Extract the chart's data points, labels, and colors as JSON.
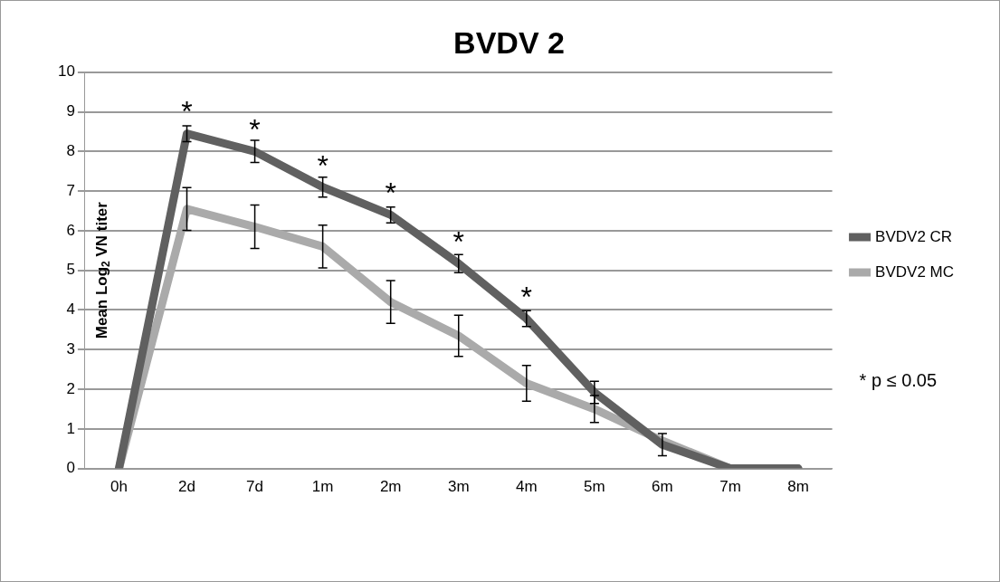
{
  "chart_data": {
    "type": "line",
    "title": "BVDV 2",
    "ylabel": "Mean Log$_{2}$ VN titer",
    "categories": [
      "0h",
      "2d",
      "7d",
      "1m",
      "2m",
      "3m",
      "4m",
      "5m",
      "6m",
      "7m",
      "8m"
    ],
    "series": [
      {
        "name": "BVDV2 CR",
        "color": "#606060",
        "values": [
          0,
          8.45,
          8.0,
          7.1,
          6.4,
          5.17,
          3.78,
          1.92,
          0.6,
          0,
          0
        ],
        "errors": [
          null,
          0.2,
          0.28,
          0.25,
          0.2,
          0.23,
          0.2,
          0.28,
          0.28,
          null,
          null
        ]
      },
      {
        "name": "BVDV2 MC",
        "color": "#aaaaaa",
        "values": [
          0,
          6.55,
          6.1,
          5.6,
          4.2,
          3.35,
          2.15,
          1.5,
          0.7,
          0,
          0
        ],
        "errors": [
          null,
          0.54,
          0.55,
          0.54,
          0.54,
          0.52,
          0.45,
          0.34,
          null,
          null,
          null
        ]
      }
    ],
    "ylim": [
      0,
      10
    ],
    "yticks": [
      0,
      1,
      2,
      3,
      4,
      5,
      6,
      7,
      8,
      9,
      10
    ],
    "grid": "y",
    "legend": "right",
    "marker": "none",
    "line_style": "solid",
    "annotations": [
      {
        "text": "*",
        "x": "2d",
        "y": 8.45
      },
      {
        "text": "*",
        "x": "7d",
        "y": 8.0
      },
      {
        "text": "*",
        "x": "1m",
        "y": 7.1
      },
      {
        "text": "*",
        "x": "2m",
        "y": 6.4
      },
      {
        "text": "*",
        "x": "3m",
        "y": 5.17
      },
      {
        "text": "*",
        "x": "4m",
        "y": 3.78
      },
      "* p ≤ 0.05"
    ]
  }
}
